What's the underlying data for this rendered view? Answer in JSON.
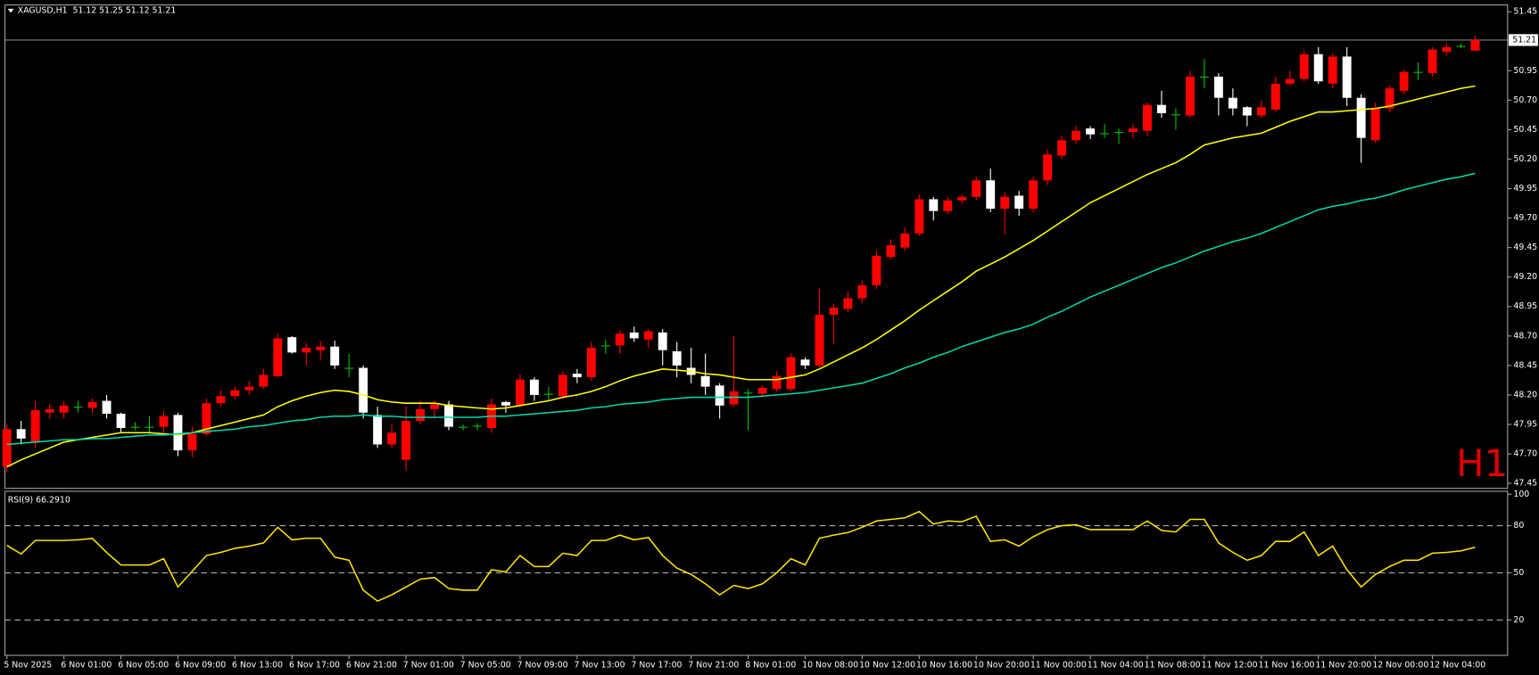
{
  "chart_data": [
    {
      "type": "candlestick",
      "title": "XAGUSD,H1  51.12 51.25 51.12 51.21",
      "annotation": "H1",
      "categories": [
        "5 Nov 2025",
        null,
        null,
        null,
        "6 Nov 01:00",
        null,
        null,
        null,
        "6 Nov 05:00",
        null,
        null,
        null,
        "6 Nov 09:00",
        null,
        null,
        null,
        "6 Nov 13:00",
        null,
        null,
        null,
        "6 Nov 17:00",
        null,
        null,
        null,
        "6 Nov 21:00",
        null,
        null,
        null,
        "7 Nov 01:00",
        null,
        null,
        null,
        "7 Nov 05:00",
        null,
        null,
        null,
        "7 Nov 09:00",
        null,
        null,
        null,
        "7 Nov 13:00",
        null,
        null,
        null,
        "7 Nov 17:00",
        null,
        null,
        null,
        "7 Nov 21:00",
        null,
        null,
        null,
        "8 Nov 01:00",
        null,
        null,
        null,
        "10 Nov 08:00",
        null,
        null,
        null,
        "10 Nov 12:00",
        null,
        null,
        null,
        "10 Nov 16:00",
        null,
        null,
        null,
        "10 Nov 20:00",
        null,
        null,
        null,
        "11 Nov 00:00",
        null,
        null,
        null,
        "11 Nov 04:00",
        null,
        null,
        null,
        "11 Nov 08:00",
        null,
        null,
        null,
        "11 Nov 12:00",
        null,
        null,
        null,
        "11 Nov 16:00",
        null,
        null,
        null,
        "11 Nov 20:00",
        null,
        null,
        null,
        "12 Nov 00:00",
        null,
        null,
        null,
        "12 Nov 04:00",
        null,
        null,
        null
      ],
      "open": [
        47.59,
        47.91,
        47.8,
        48.05,
        48.05,
        48.1,
        48.09,
        48.15,
        48.04,
        47.93,
        47.93,
        47.93,
        48.03,
        47.73,
        47.87,
        48.13,
        48.19,
        48.24,
        48.27,
        48.36,
        48.69,
        48.56,
        48.58,
        48.61,
        48.43,
        48.43,
        48.03,
        47.78,
        47.65,
        47.98,
        48.08,
        48.12,
        47.93,
        47.94,
        47.92,
        48.14,
        48.11,
        48.33,
        48.21,
        48.19,
        48.38,
        48.35,
        48.62,
        48.62,
        48.73,
        48.67,
        48.73,
        48.57,
        48.43,
        48.36,
        48.28,
        48.12,
        48.22,
        48.21,
        48.25,
        48.25,
        48.5,
        48.45,
        48.88,
        48.93,
        49.02,
        49.13,
        49.37,
        49.45,
        49.57,
        49.86,
        49.76,
        49.85,
        49.88,
        50.02,
        49.78,
        49.89,
        49.78,
        50.02,
        50.23,
        50.36,
        50.46,
        50.42,
        50.43,
        50.43,
        50.44,
        50.66,
        50.58,
        50.57,
        50.9,
        50.9,
        50.72,
        50.64,
        50.57,
        50.62,
        50.84,
        50.88,
        51.09,
        50.84,
        51.07,
        50.72,
        50.36,
        50.63,
        50.78,
        50.94,
        50.93,
        51.11,
        51.16,
        51.12
      ],
      "high": [
        47.95,
        47.98,
        48.15,
        48.12,
        48.15,
        48.15,
        48.17,
        48.2,
        48.05,
        47.97,
        48.02,
        48.06,
        48.05,
        47.93,
        48.17,
        48.24,
        48.27,
        48.32,
        48.42,
        48.72,
        48.7,
        48.64,
        48.66,
        48.66,
        48.55,
        48.45,
        48.1,
        47.95,
        48.1,
        48.15,
        48.15,
        48.15,
        47.95,
        47.96,
        48.17,
        48.15,
        48.38,
        48.35,
        48.27,
        48.4,
        48.42,
        48.65,
        48.67,
        48.75,
        48.78,
        48.76,
        48.76,
        48.65,
        48.6,
        48.55,
        48.3,
        48.7,
        48.25,
        48.28,
        48.4,
        48.55,
        48.52,
        49.1,
        48.97,
        49.08,
        49.17,
        49.42,
        49.52,
        49.62,
        49.9,
        49.88,
        49.88,
        49.9,
        50.05,
        50.12,
        49.92,
        49.93,
        50.05,
        50.28,
        50.4,
        50.48,
        50.48,
        50.5,
        50.46,
        50.5,
        50.68,
        50.78,
        50.63,
        50.95,
        51.05,
        50.93,
        50.8,
        50.65,
        50.7,
        50.9,
        50.95,
        51.12,
        51.15,
        51.1,
        51.15,
        50.75,
        50.68,
        50.83,
        50.96,
        51.02,
        51.15,
        51.18,
        51.18,
        51.25
      ],
      "low": [
        47.55,
        47.78,
        47.75,
        48.0,
        48.0,
        48.05,
        48.05,
        48.0,
        47.88,
        47.9,
        47.87,
        47.88,
        47.68,
        47.67,
        47.85,
        48.1,
        48.16,
        48.2,
        48.25,
        48.35,
        48.55,
        48.45,
        48.5,
        48.42,
        48.35,
        48.0,
        47.75,
        47.75,
        47.56,
        47.95,
        48.0,
        47.9,
        47.9,
        47.9,
        47.88,
        48.05,
        48.1,
        48.15,
        48.15,
        48.17,
        48.3,
        48.32,
        48.55,
        48.55,
        48.65,
        48.6,
        48.45,
        48.35,
        48.3,
        48.2,
        48.0,
        48.1,
        47.9,
        48.18,
        48.23,
        48.23,
        48.42,
        48.43,
        48.63,
        48.9,
        48.98,
        49.1,
        49.35,
        49.42,
        49.55,
        49.68,
        49.73,
        49.82,
        49.85,
        49.75,
        49.56,
        49.72,
        49.75,
        49.98,
        50.2,
        50.33,
        50.37,
        50.38,
        50.33,
        50.38,
        50.4,
        50.55,
        50.45,
        50.55,
        50.8,
        50.57,
        50.57,
        50.48,
        50.55,
        50.6,
        50.82,
        50.86,
        50.84,
        50.8,
        50.65,
        50.17,
        50.34,
        50.6,
        50.75,
        50.87,
        50.9,
        51.08,
        51.14,
        51.12
      ],
      "close": [
        47.91,
        47.83,
        48.07,
        48.08,
        48.11,
        48.1,
        48.14,
        48.04,
        47.92,
        47.93,
        47.93,
        48.02,
        47.73,
        47.87,
        48.13,
        48.19,
        48.24,
        48.27,
        48.37,
        48.68,
        48.56,
        48.6,
        48.61,
        48.45,
        48.43,
        48.05,
        47.78,
        47.88,
        47.98,
        48.08,
        48.12,
        47.93,
        47.93,
        47.94,
        48.12,
        48.11,
        48.33,
        48.2,
        48.21,
        48.37,
        48.35,
        48.6,
        48.62,
        48.72,
        48.68,
        48.74,
        48.58,
        48.45,
        48.37,
        48.27,
        48.11,
        48.23,
        48.22,
        48.26,
        48.36,
        48.52,
        48.45,
        48.88,
        48.94,
        49.02,
        49.13,
        49.38,
        49.47,
        49.57,
        49.86,
        49.76,
        49.85,
        49.88,
        50.02,
        49.78,
        49.88,
        49.78,
        50.02,
        50.24,
        50.36,
        50.44,
        50.41,
        50.42,
        50.43,
        50.46,
        50.66,
        50.59,
        50.58,
        50.9,
        50.9,
        50.72,
        50.63,
        50.57,
        50.64,
        50.84,
        50.88,
        51.09,
        50.86,
        51.07,
        50.72,
        50.38,
        50.63,
        50.8,
        50.94,
        50.94,
        51.13,
        51.15,
        51.16,
        51.21
      ],
      "up_color": "#ff0000",
      "down_color": "#ffffff",
      "doji_color": "#00c000",
      "series": [
        {
          "color": "#ffff00",
          "values": [
            47.59,
            47.65,
            47.7,
            47.75,
            47.8,
            47.82,
            47.84,
            47.86,
            47.88,
            47.88,
            47.88,
            47.87,
            47.86,
            47.88,
            47.91,
            47.94,
            47.97,
            48.0,
            48.03,
            48.1,
            48.15,
            48.19,
            48.22,
            48.24,
            48.23,
            48.2,
            48.16,
            48.14,
            48.13,
            48.13,
            48.13,
            48.11,
            48.1,
            48.09,
            48.08,
            48.09,
            48.11,
            48.13,
            48.15,
            48.18,
            48.2,
            48.23,
            48.27,
            48.32,
            48.36,
            48.39,
            48.42,
            48.41,
            48.4,
            48.38,
            48.37,
            48.35,
            48.33,
            48.33,
            48.33,
            48.35,
            48.37,
            48.42,
            48.48,
            48.54,
            48.6,
            48.67,
            48.75,
            48.83,
            48.92,
            49.0,
            49.08,
            49.16,
            49.25,
            49.31,
            49.37,
            49.44,
            49.51,
            49.59,
            49.67,
            49.75,
            49.83,
            49.89,
            49.95,
            50.01,
            50.07,
            50.12,
            50.17,
            50.24,
            50.32,
            50.35,
            50.38,
            50.4,
            50.42,
            50.47,
            50.52,
            50.56,
            50.6,
            50.6,
            50.61,
            50.62,
            50.63,
            50.65,
            50.68,
            50.71,
            50.74,
            50.77,
            50.8,
            50.82
          ]
        },
        {
          "color": "#00d8a8",
          "values": [
            47.78,
            47.79,
            47.8,
            47.81,
            47.82,
            47.82,
            47.83,
            47.83,
            47.84,
            47.85,
            47.86,
            47.86,
            47.87,
            47.88,
            47.89,
            47.9,
            47.91,
            47.93,
            47.94,
            47.96,
            47.98,
            47.99,
            48.01,
            48.02,
            48.02,
            48.03,
            48.02,
            48.02,
            48.01,
            48.01,
            48.01,
            48.01,
            48.01,
            48.01,
            48.02,
            48.02,
            48.03,
            48.04,
            48.05,
            48.06,
            48.07,
            48.09,
            48.1,
            48.12,
            48.13,
            48.14,
            48.16,
            48.17,
            48.18,
            48.18,
            48.18,
            48.18,
            48.18,
            48.19,
            48.2,
            48.21,
            48.22,
            48.24,
            48.26,
            48.28,
            48.3,
            48.34,
            48.38,
            48.43,
            48.47,
            48.52,
            48.56,
            48.61,
            48.65,
            48.69,
            48.73,
            48.76,
            48.8,
            48.86,
            48.91,
            48.97,
            49.03,
            49.08,
            49.13,
            49.18,
            49.23,
            49.28,
            49.32,
            49.37,
            49.42,
            49.46,
            49.5,
            49.53,
            49.57,
            49.62,
            49.67,
            49.72,
            49.77,
            49.8,
            49.82,
            49.85,
            49.87,
            49.9,
            49.94,
            49.97,
            50.0,
            50.03,
            50.05,
            50.08
          ]
        }
      ],
      "ylim": [
        47.408,
        51.508
      ],
      "yticks": [
        47.45,
        {
          "value": 47.7,
          "label": "47.70"
        },
        47.95,
        {
          "value": 48.2,
          "label": "48.20"
        },
        48.45,
        {
          "value": 48.7,
          "label": "48.70"
        },
        48.95,
        {
          "value": 49.2,
          "label": "49.20"
        },
        49.45,
        {
          "value": 49.7,
          "label": "49.70"
        },
        49.95,
        {
          "value": 50.2,
          "label": "50.20"
        },
        50.45,
        {
          "value": 50.7,
          "label": "50.70"
        },
        50.95,
        51.45
      ],
      "price_line": {
        "value": 51.21,
        "label": "51.21"
      }
    },
    {
      "type": "line",
      "title": "RSI(9) 66.2910",
      "series": [
        {
          "color": "#ffe400",
          "values": [
            67.5,
            62,
            70.6,
            70.6,
            70.6,
            71,
            71.9,
            63,
            55,
            55,
            55,
            59,
            41,
            51,
            61,
            63,
            65.6,
            67,
            69,
            79,
            71,
            72,
            72,
            60,
            58,
            39,
            32,
            36,
            41,
            46,
            47,
            40,
            39,
            39,
            52,
            50.6,
            61,
            54,
            54,
            62.5,
            61,
            70.6,
            70.6,
            74,
            71,
            72.5,
            61,
            53,
            49,
            43,
            36,
            42,
            40,
            43,
            50,
            59,
            55,
            72,
            74,
            75.6,
            79,
            83,
            84,
            85,
            89,
            81,
            83,
            82.5,
            86,
            70,
            71,
            67,
            73,
            77.5,
            80,
            80.6,
            77.5,
            77.5,
            77.5,
            77.5,
            83,
            77,
            76,
            84,
            84,
            69,
            63,
            58,
            61,
            70,
            70,
            76,
            61,
            67,
            52,
            41,
            49,
            54,
            58,
            58,
            62.5,
            63,
            64,
            66.29
          ]
        }
      ],
      "ylim": [
        -2.5,
        101.9
      ],
      "yticks": [
        20,
        50,
        80,
        100
      ],
      "levels": [
        20,
        50,
        80
      ]
    }
  ]
}
